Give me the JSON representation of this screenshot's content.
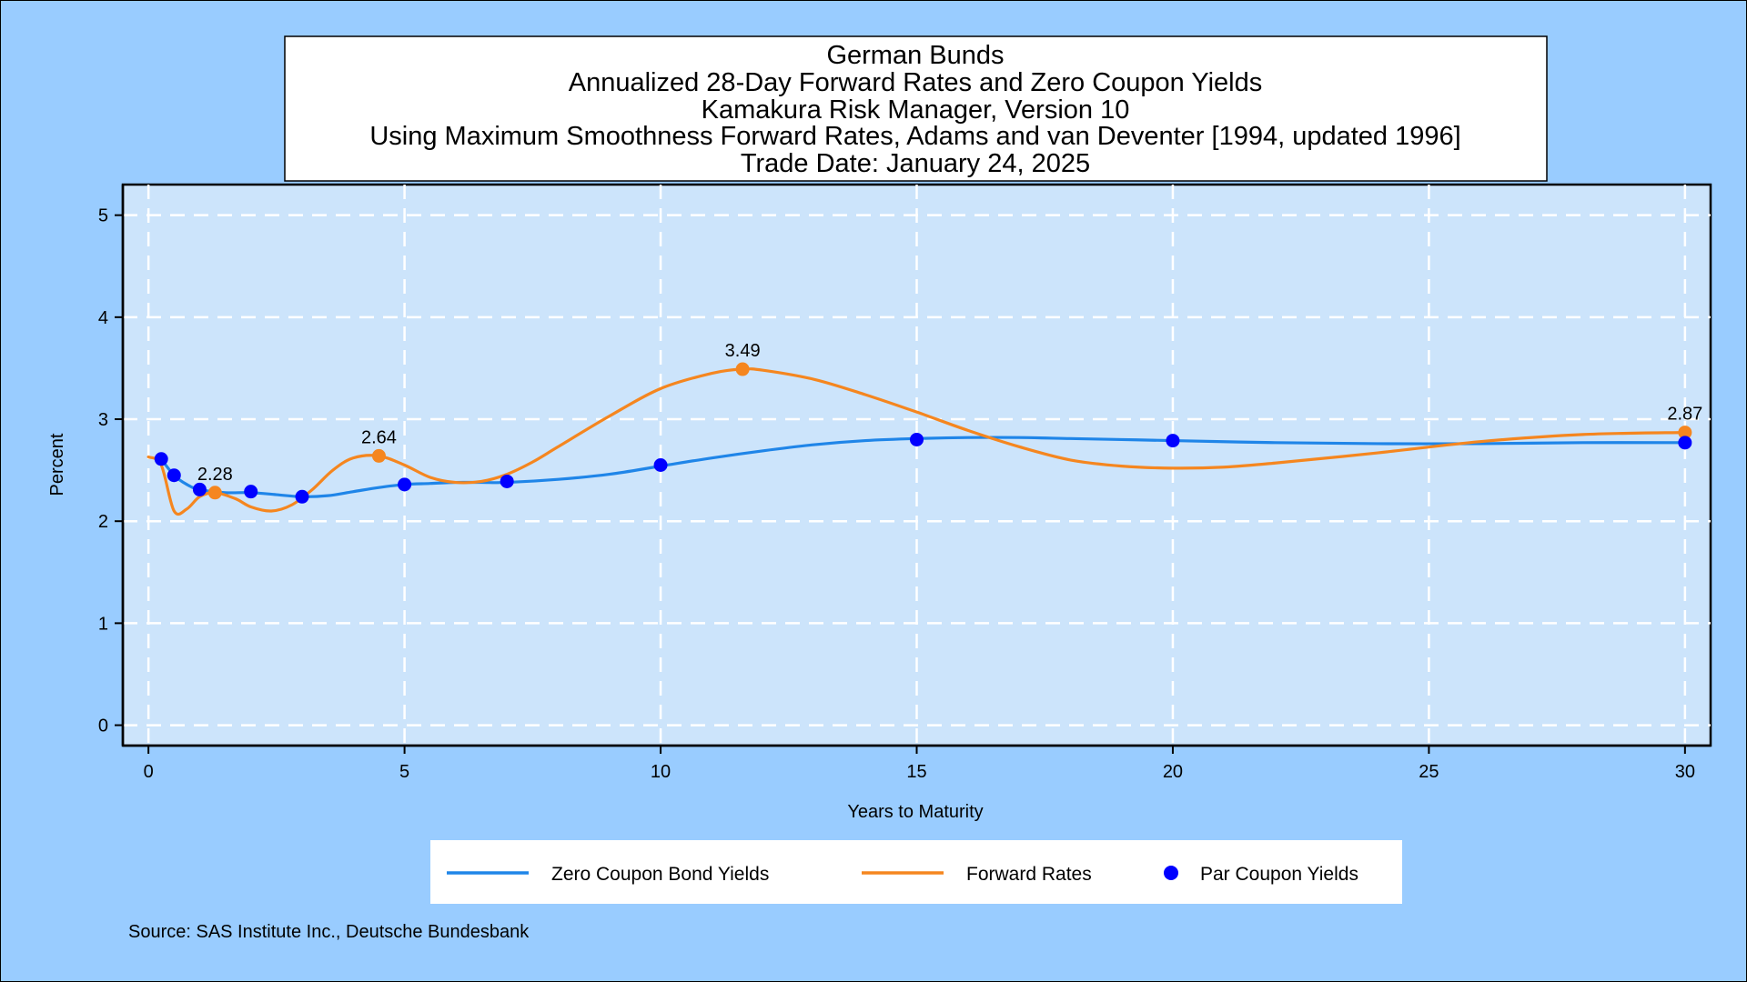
{
  "title_lines": [
    "German Bunds",
    "Annualized 28-Day Forward Rates and Zero Coupon Yields",
    "Kamakura Risk Manager, Version 10",
    "Using Maximum Smoothness Forward Rates, Adams and van Deventer [1994, updated 1996]",
    "Trade Date: January 24, 2025"
  ],
  "source": "Source: SAS Institute Inc., Deutsche Bundesbank",
  "colors": {
    "background": "#99ccff",
    "plot_area": "#cce4fb",
    "zero_coupon": "#1f85e8",
    "forward": "#f5861f",
    "par": "#0000ff"
  },
  "chart_data": {
    "type": "line",
    "xlabel": "Years to Maturity",
    "ylabel": "Percent",
    "xlim": [
      -0.5,
      30.5
    ],
    "ylim": [
      -0.2,
      5.3
    ],
    "xticks": [
      0,
      5,
      10,
      15,
      20,
      25,
      30
    ],
    "yticks": [
      0,
      1,
      2,
      3,
      4,
      5
    ],
    "grid": true,
    "legend_position": "bottom",
    "series": [
      {
        "name": "Zero Coupon Bond Yields",
        "kind": "line",
        "color": "#1f85e8",
        "x": [
          0.25,
          0.5,
          0.75,
          1,
          1.5,
          2,
          2.5,
          3,
          3.5,
          4,
          4.5,
          5,
          5.5,
          6,
          6.5,
          7,
          8,
          9,
          10,
          11,
          12,
          13,
          14,
          15,
          16,
          17,
          18,
          19,
          20,
          22,
          24,
          26,
          28,
          30
        ],
        "y": [
          2.61,
          2.45,
          2.36,
          2.31,
          2.28,
          2.28,
          2.26,
          2.24,
          2.25,
          2.29,
          2.33,
          2.36,
          2.37,
          2.38,
          2.38,
          2.38,
          2.41,
          2.46,
          2.54,
          2.62,
          2.69,
          2.75,
          2.79,
          2.81,
          2.82,
          2.82,
          2.81,
          2.8,
          2.79,
          2.77,
          2.76,
          2.76,
          2.77,
          2.77
        ]
      },
      {
        "name": "Forward Rates",
        "kind": "line",
        "color": "#f5861f",
        "x": [
          0,
          0.25,
          0.5,
          0.75,
          1,
          1.3,
          1.7,
          2,
          2.4,
          2.8,
          3.2,
          3.6,
          4,
          4.5,
          5,
          5.5,
          6,
          6.5,
          7,
          7.5,
          8,
          9,
          10,
          11,
          11.6,
          12,
          13,
          14,
          15,
          16,
          17,
          18,
          19,
          20,
          21,
          22,
          24,
          26,
          28,
          30
        ],
        "y": [
          2.63,
          2.55,
          2.1,
          2.12,
          2.24,
          2.28,
          2.22,
          2.14,
          2.1,
          2.16,
          2.31,
          2.5,
          2.62,
          2.64,
          2.55,
          2.43,
          2.38,
          2.39,
          2.46,
          2.58,
          2.73,
          3.03,
          3.3,
          3.45,
          3.49,
          3.48,
          3.39,
          3.24,
          3.07,
          2.89,
          2.73,
          2.6,
          2.54,
          2.52,
          2.53,
          2.57,
          2.67,
          2.78,
          2.85,
          2.87
        ]
      },
      {
        "name": "Par Coupon Yields",
        "kind": "scatter",
        "color": "#0000ff",
        "x": [
          0.25,
          0.5,
          1,
          2,
          3,
          5,
          7,
          10,
          15,
          20,
          30
        ],
        "y": [
          2.61,
          2.45,
          2.31,
          2.29,
          2.24,
          2.36,
          2.39,
          2.55,
          2.8,
          2.79,
          2.77
        ]
      }
    ],
    "forward_markers": {
      "x": [
        1.3,
        4.5,
        11.6,
        30
      ],
      "y": [
        2.28,
        2.64,
        3.49,
        2.87
      ]
    },
    "annotations": [
      {
        "x": 1.3,
        "y": 2.28,
        "text": "2.28"
      },
      {
        "x": 4.5,
        "y": 2.64,
        "text": "2.64"
      },
      {
        "x": 11.6,
        "y": 3.49,
        "text": "3.49"
      },
      {
        "x": 30,
        "y": 2.87,
        "text": "2.87"
      }
    ]
  }
}
